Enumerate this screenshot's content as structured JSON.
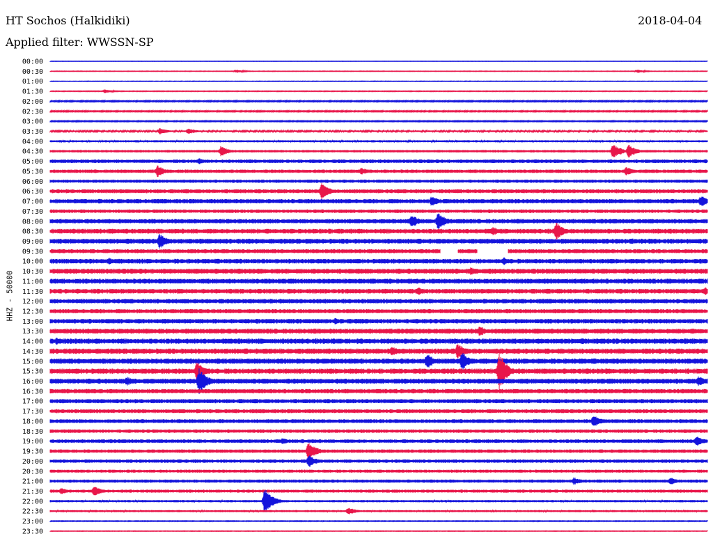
{
  "header": {
    "station": "HT Sochos (Halkidiki)",
    "date": "2018-04-04",
    "filter": "Applied filter: WWSSN-SP"
  },
  "colors": {
    "even_trace": "#1414dc",
    "odd_trace": "#e8164a",
    "background": "#ffffff",
    "text": "#000000"
  },
  "chart_data": {
    "type": "line",
    "title": "HT Sochos (Halkidiki)",
    "subtitle": "Applied filter: WWSSN-SP",
    "date": "2018-04-04",
    "ylabel": "HHZ - 50000",
    "xlabel": "",
    "row_labels": [
      "00:00",
      "00:30",
      "01:00",
      "01:30",
      "02:00",
      "02:30",
      "03:00",
      "03:30",
      "04:00",
      "04:30",
      "05:00",
      "05:30",
      "06:00",
      "06:30",
      "07:00",
      "07:30",
      "08:00",
      "08:30",
      "09:00",
      "09:30",
      "10:00",
      "10:30",
      "11:00",
      "11:30",
      "12:00",
      "12:30",
      "13:00",
      "13:30",
      "14:00",
      "14:30",
      "15:00",
      "15:30",
      "16:00",
      "16:30",
      "17:00",
      "17:30",
      "18:00",
      "18:30",
      "19:00",
      "19:30",
      "20:00",
      "20:30",
      "21:00",
      "21:30",
      "22:00",
      "22:30",
      "23:00",
      "23:30"
    ],
    "row_colors": [
      "blue",
      "red"
    ],
    "row_noise_level": [
      0.3,
      0.4,
      0.4,
      0.5,
      0.9,
      0.9,
      0.8,
      1.2,
      1.5,
      1.8,
      2.5,
      2.5,
      2.3,
      2.8,
      3.2,
      2.5,
      3.2,
      3.5,
      3.5,
      3.0,
      3.4,
      3.6,
      3.6,
      3.4,
      3.2,
      3.1,
      3.3,
      3.6,
      3.8,
      3.8,
      3.8,
      3.8,
      3.6,
      3.2,
      3.0,
      2.8,
      2.8,
      2.5,
      2.6,
      2.5,
      2.4,
      2.2,
      2.3,
      2.2,
      1.6,
      1.5,
      0.6,
      0.4
    ],
    "events": [
      {
        "row": 1,
        "minute": 8.5,
        "amp": 2.5
      },
      {
        "row": 1,
        "minute": 26.8,
        "amp": 2.5
      },
      {
        "row": 3,
        "minute": 2.5,
        "amp": 3
      },
      {
        "row": 7,
        "minute": 5,
        "amp": 5
      },
      {
        "row": 7,
        "minute": 6.3,
        "amp": 5
      },
      {
        "row": 9,
        "minute": 7.8,
        "amp": 8
      },
      {
        "row": 9,
        "minute": 25.7,
        "amp": 12
      },
      {
        "row": 9,
        "minute": 26.4,
        "amp": 10
      },
      {
        "row": 10,
        "minute": 6.8,
        "amp": 5
      },
      {
        "row": 11,
        "minute": 4.9,
        "amp": 9
      },
      {
        "row": 11,
        "minute": 14.2,
        "amp": 6
      },
      {
        "row": 11,
        "minute": 26.3,
        "amp": 7
      },
      {
        "row": 13,
        "minute": 12.4,
        "amp": 12
      },
      {
        "row": 14,
        "minute": 17.4,
        "amp": 8
      },
      {
        "row": 14,
        "minute": 29.7,
        "amp": 9
      },
      {
        "row": 16,
        "minute": 16.5,
        "amp": 10
      },
      {
        "row": 16,
        "minute": 17.7,
        "amp": 14
      },
      {
        "row": 17,
        "minute": 20.2,
        "amp": 7
      },
      {
        "row": 17,
        "minute": 23.1,
        "amp": 13
      },
      {
        "row": 18,
        "minute": 5,
        "amp": 12
      },
      {
        "row": 18,
        "minute": 26.5,
        "amp": 5
      },
      {
        "row": 20,
        "minute": 2.7,
        "amp": 5
      },
      {
        "row": 20,
        "minute": 20.7,
        "amp": 6
      },
      {
        "row": 21,
        "minute": 19.2,
        "amp": 6
      },
      {
        "row": 22,
        "minute": 12.9,
        "amp": 4
      },
      {
        "row": 23,
        "minute": 16.8,
        "amp": 6
      },
      {
        "row": 23,
        "minute": 29.9,
        "amp": 7
      },
      {
        "row": 26,
        "minute": 13,
        "amp": 5
      },
      {
        "row": 27,
        "minute": 19.6,
        "amp": 8
      },
      {
        "row": 28,
        "minute": 0.3,
        "amp": 6
      },
      {
        "row": 29,
        "minute": 15.6,
        "amp": 8
      },
      {
        "row": 29,
        "minute": 18.6,
        "amp": 12
      },
      {
        "row": 30,
        "minute": 17.2,
        "amp": 12
      },
      {
        "row": 30,
        "minute": 18.8,
        "amp": 14
      },
      {
        "row": 31,
        "minute": 6.7,
        "amp": 15
      },
      {
        "row": 31,
        "minute": 20.5,
        "amp": 28
      },
      {
        "row": 32,
        "minute": 3.5,
        "amp": 7
      },
      {
        "row": 32,
        "minute": 6.8,
        "amp": 20
      },
      {
        "row": 32,
        "minute": 29.6,
        "amp": 8
      },
      {
        "row": 36,
        "minute": 24.8,
        "amp": 10
      },
      {
        "row": 38,
        "minute": 10.6,
        "amp": 5
      },
      {
        "row": 38,
        "minute": 29.5,
        "amp": 8
      },
      {
        "row": 39,
        "minute": 11.8,
        "amp": 14
      },
      {
        "row": 40,
        "minute": 11.8,
        "amp": 10
      },
      {
        "row": 42,
        "minute": 23.9,
        "amp": 6
      },
      {
        "row": 42,
        "minute": 28.3,
        "amp": 6
      },
      {
        "row": 43,
        "minute": 0.5,
        "amp": 5
      },
      {
        "row": 43,
        "minute": 2.0,
        "amp": 8
      },
      {
        "row": 44,
        "minute": 9.8,
        "amp": 20
      },
      {
        "row": 45,
        "minute": 13.6,
        "amp": 6
      }
    ],
    "gaps": [
      {
        "row": 19,
        "minute_start": 17.8,
        "minute_end": 18.6
      },
      {
        "row": 19,
        "minute_start": 19.5,
        "minute_end": 20.9
      }
    ],
    "xlim_minutes": [
      0,
      30
    ]
  }
}
